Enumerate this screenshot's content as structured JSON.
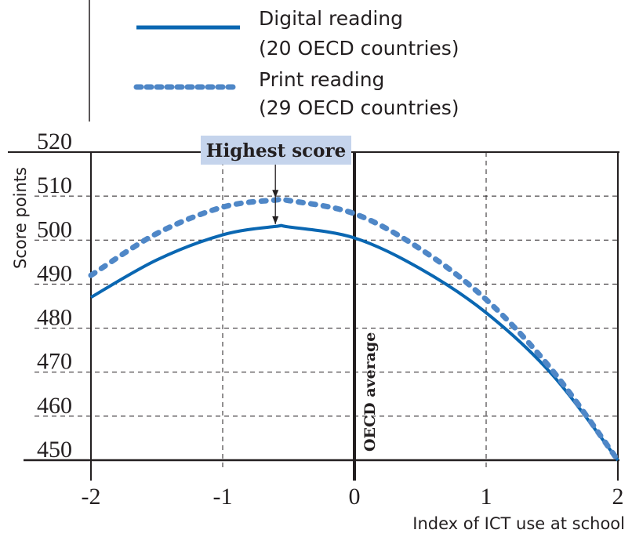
{
  "chart_data": {
    "type": "line",
    "title": "",
    "xlabel": "Index of ICT use at school",
    "ylabel": "Score points",
    "xlim": [
      -2,
      2
    ],
    "ylim": [
      450,
      520
    ],
    "x_ticks": [
      "-2",
      "-1",
      "0",
      "1",
      "2"
    ],
    "y_ticks": [
      "450",
      "460",
      "470",
      "480",
      "490",
      "500",
      "510",
      "520"
    ],
    "grid": true,
    "legend_position": "top",
    "x": [
      -2,
      -1.5,
      -1,
      -0.6,
      -0.5,
      0,
      0.5,
      1,
      1.5,
      2
    ],
    "series": [
      {
        "name": "Digital reading",
        "name_line2": "(20 OECD countries)",
        "style": "solid",
        "color": "#0a67b2",
        "values": [
          487,
          495.5,
          501.2,
          503.1,
          503.0,
          500.5,
          493.5,
          483.5,
          469.5,
          450
        ]
      },
      {
        "name": "Print reading",
        "name_line2": "(29 OECD countries)",
        "style": "dotted",
        "color": "#4f87c7",
        "values": [
          492,
          501.5,
          507.5,
          509.1,
          509.0,
          506,
          498,
          486.5,
          470.5,
          450
        ]
      }
    ],
    "annotations": {
      "highest_score": "Highest score",
      "highest_score_x": -0.6,
      "oecd_average": "OECD average",
      "oecd_average_x": 0
    }
  },
  "colors": {
    "axis": "#231f20",
    "annotation_box": "#c5d4ec"
  }
}
